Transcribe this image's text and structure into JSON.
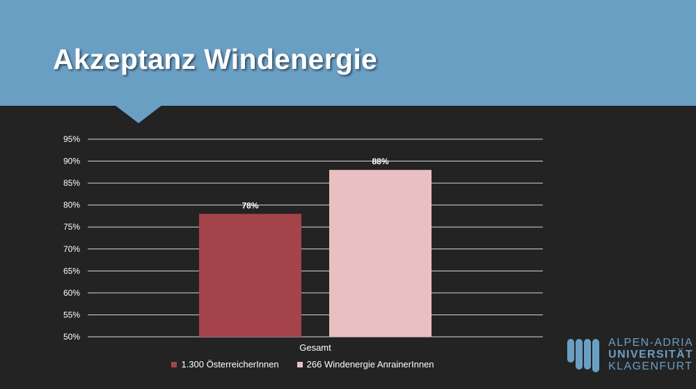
{
  "slide": {
    "title": "Akzeptanz Windenergie"
  },
  "colors": {
    "header": "#6a9fc4",
    "background": "#232323",
    "series1": "#a4434a",
    "series2": "#eabfc1",
    "grid": "#d9d9d9"
  },
  "chart_data": {
    "type": "bar",
    "categories": [
      "Gesamt"
    ],
    "series": [
      {
        "name": "1.300 ÖsterreicherInnen",
        "values": [
          78
        ],
        "label": "78%"
      },
      {
        "name": "266 Windenergie AnrainerInnen",
        "values": [
          88
        ],
        "label": "88%"
      }
    ],
    "y_ticks": [
      "50%",
      "55%",
      "60%",
      "65%",
      "70%",
      "75%",
      "80%",
      "85%",
      "90%",
      "95%"
    ],
    "ylim": [
      50,
      95
    ],
    "grid": true,
    "legend_position": "bottom"
  },
  "logo": {
    "line1": "ALPEN-ADRIA",
    "line2": "UNIVERSITÄT",
    "line3": "KLAGENFURT"
  }
}
